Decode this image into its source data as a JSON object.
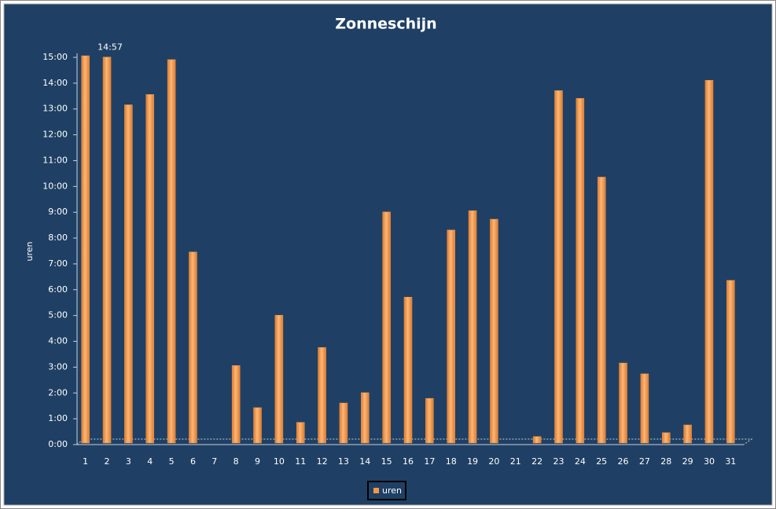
{
  "chart_data": {
    "type": "bar",
    "title": "Zonneschijn",
    "y_label": "uren",
    "categories": [
      "1",
      "2",
      "3",
      "4",
      "5",
      "6",
      "7",
      "8",
      "9",
      "10",
      "11",
      "12",
      "13",
      "14",
      "15",
      "16",
      "17",
      "18",
      "19",
      "20",
      "21",
      "22",
      "23",
      "24",
      "25",
      "26",
      "27",
      "28",
      "29",
      "30",
      "31"
    ],
    "series": [
      {
        "name": "uren",
        "color": "#f79646",
        "values": [
          15.0,
          14.95,
          13.1,
          13.5,
          14.85,
          7.4,
          0,
          3.0,
          1.37,
          4.95,
          0.8,
          3.7,
          1.55,
          1.95,
          8.95,
          5.65,
          1.73,
          8.25,
          9.0,
          8.67,
          0,
          0.25,
          13.65,
          13.35,
          10.3,
          3.1,
          2.68,
          0.4,
          0.7,
          14.05,
          6.3
        ],
        "value_labels": [
          null,
          "14:57",
          null,
          null,
          null,
          null,
          null,
          null,
          null,
          null,
          null,
          null,
          null,
          null,
          null,
          null,
          null,
          null,
          null,
          null,
          null,
          null,
          null,
          null,
          null,
          null,
          null,
          null,
          null,
          null,
          null
        ]
      }
    ],
    "ylim": [
      0,
      15
    ],
    "yticks": [
      {
        "value": 0,
        "label": "0:00"
      },
      {
        "value": 1,
        "label": "1:00"
      },
      {
        "value": 2,
        "label": "2:00"
      },
      {
        "value": 3,
        "label": "3:00"
      },
      {
        "value": 4,
        "label": "4:00"
      },
      {
        "value": 5,
        "label": "5:00"
      },
      {
        "value": 6,
        "label": "6:00"
      },
      {
        "value": 7,
        "label": "7:00"
      },
      {
        "value": 8,
        "label": "8:00"
      },
      {
        "value": 9,
        "label": "9:00"
      },
      {
        "value": 10,
        "label": "10:00"
      },
      {
        "value": 11,
        "label": "11:00"
      },
      {
        "value": 12,
        "label": "12:00"
      },
      {
        "value": 13,
        "label": "13:00"
      },
      {
        "value": 14,
        "label": "14:00"
      },
      {
        "value": 15,
        "label": "15:00"
      }
    ],
    "grid": false,
    "legend": "bottom"
  }
}
